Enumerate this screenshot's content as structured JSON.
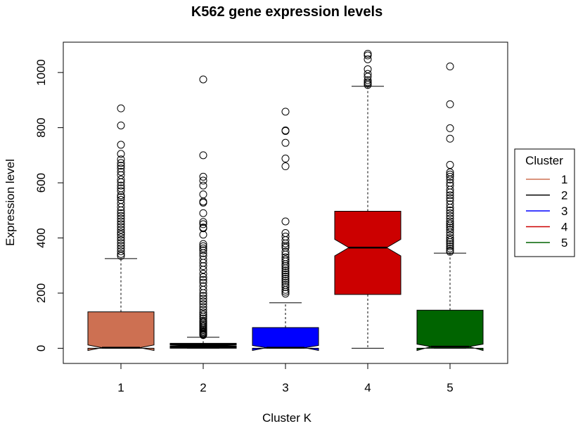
{
  "chart_data": {
    "type": "boxplot",
    "title": "K562 gene expression levels",
    "xlabel": "Cluster K",
    "ylabel": "Expression level",
    "notched": true,
    "categories": [
      "1",
      "2",
      "3",
      "4",
      "5"
    ],
    "yticks": [
      "0",
      "200",
      "400",
      "600",
      "800",
      "1000"
    ],
    "ylim": [
      -55,
      1110
    ],
    "grid": false,
    "legend": {
      "title": "Cluster",
      "placement": "right",
      "entries": [
        {
          "label": "1",
          "color": "#CD7052"
        },
        {
          "label": "2",
          "color": "#000000"
        },
        {
          "label": "3",
          "color": "#0000FF"
        },
        {
          "label": "4",
          "color": "#CC0000"
        },
        {
          "label": "5",
          "color": "#006400"
        }
      ]
    },
    "series": [
      {
        "category": "1",
        "color": "#CD7052",
        "whisker_low": 0,
        "q1": 0,
        "median": 2,
        "q3": 132,
        "whisker_high": 325,
        "notch_low": -8,
        "notch_high": 12,
        "outliers": [
          870,
          808,
          738,
          705,
          685,
          672,
          662,
          652,
          640,
          628,
          612,
          602,
          590,
          580,
          570,
          555,
          548,
          538,
          525,
          512,
          500,
          490,
          480,
          470,
          460,
          450,
          440,
          430,
          420,
          412,
          402,
          392,
          382,
          372,
          362,
          352,
          342,
          335
        ]
      },
      {
        "category": "2",
        "color": "#000000",
        "whisker_low": 0,
        "q1": 0,
        "median": 10,
        "q3": 18,
        "whisker_high": 40,
        "notch_low": 8,
        "notch_high": 12,
        "outliers": [
          975,
          700,
          622,
          608,
          590,
          558,
          532,
          528,
          490,
          458,
          450,
          438,
          435,
          412,
          378,
          370,
          362,
          355,
          345,
          335,
          322,
          310,
          298,
          285,
          270,
          258,
          248,
          238,
          225,
          212,
          200,
          190,
          180,
          170,
          160,
          150,
          140,
          130,
          122,
          115,
          108,
          100,
          95,
          90,
          85,
          80,
          75,
          70,
          66,
          62,
          58,
          55,
          52,
          50,
          48
        ]
      },
      {
        "category": "3",
        "color": "#0000FF",
        "whisker_low": 0,
        "q1": 0,
        "median": 2,
        "q3": 75,
        "whisker_high": 165,
        "notch_low": -8,
        "notch_high": 10,
        "outliers": [
          858,
          790,
          788,
          745,
          688,
          660,
          460,
          418,
          405,
          392,
          380,
          372,
          365,
          350,
          340,
          330,
          322,
          315,
          305,
          298,
          290,
          282,
          275,
          268,
          260,
          252,
          245,
          238,
          230,
          222,
          212,
          205,
          198
        ]
      },
      {
        "category": "4",
        "color": "#CC0000",
        "whisker_low": 0,
        "q1": 195,
        "median": 365,
        "q3": 497,
        "whisker_high": 950,
        "notch_low": 335,
        "notch_high": 395,
        "outliers": [
          1068,
          1062,
          1048,
          1012,
          995,
          985,
          972,
          965,
          960,
          955
        ]
      },
      {
        "category": "5",
        "color": "#006400",
        "whisker_low": 0,
        "q1": 0,
        "median": 6,
        "q3": 138,
        "whisker_high": 345,
        "notch_low": -8,
        "notch_high": 15,
        "outliers": [
          1022,
          885,
          798,
          760,
          665,
          638,
          630,
          622,
          612,
          600,
          590,
          575,
          565,
          555,
          545,
          535,
          522,
          510,
          500,
          490,
          480,
          470,
          460,
          452,
          445,
          438,
          430,
          420,
          410,
          400,
          392,
          385,
          378,
          370,
          362,
          355,
          350
        ]
      }
    ]
  }
}
